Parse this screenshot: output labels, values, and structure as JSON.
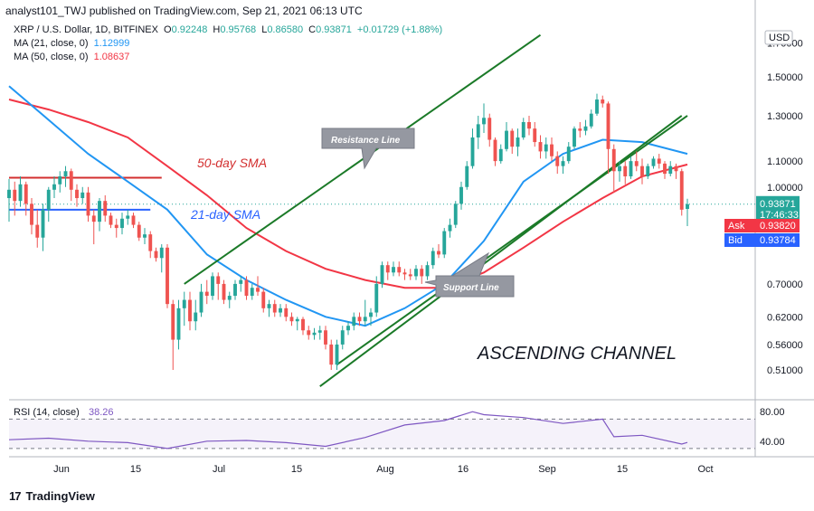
{
  "header": {
    "publisher_text": "analyst101_TWJ published on TradingView.com, Sep 21, 2021 06:13 UTC"
  },
  "footer": {
    "brand": "TradingView"
  },
  "legend": {
    "symbol_line": {
      "pair": "XRP / U.S. Dollar, 1D, BITFINEX",
      "o_label": "O",
      "o_value": "0.92248",
      "h_label": "H",
      "h_value": "0.95768",
      "l_label": "L",
      "l_value": "0.86580",
      "c_label": "C",
      "c_value": "0.93871",
      "change": "+0.01729 (+1.88%)"
    },
    "ma21": {
      "label": "MA (21, close, 0)",
      "value": "1.12999"
    },
    "ma50": {
      "label": "MA (50, close, 0)",
      "value": "1.08637"
    }
  },
  "annotations": {
    "resistance": "Resistance Line",
    "support": "Support Line",
    "sma50": "50-day SMA",
    "sma21": "21-day SMA",
    "channel": "ASCENDING CHANNEL"
  },
  "price_axis": {
    "currency": "USD",
    "ticks": [
      "1.70000",
      "1.50000",
      "1.30000",
      "1.10000",
      "1.00000",
      "0.70000",
      "0.62000",
      "0.56000",
      "0.51000"
    ],
    "last_price": "0.93871",
    "countdown": "17:46:33",
    "ask_label": "Ask",
    "ask_value": "0.93820",
    "bid_label": "Bid",
    "bid_value": "0.93784"
  },
  "rsi": {
    "label": "RSI (14, close)",
    "value": "38.26",
    "ticks": [
      "80.00",
      "40.00"
    ]
  },
  "time_axis": {
    "ticks": [
      "Jun",
      "15",
      "Jul",
      "15",
      "Aug",
      "16",
      "Sep",
      "15",
      "Oct"
    ]
  },
  "colors": {
    "up": "#26a69a",
    "down": "#ef5350",
    "ma21": "#2196f3",
    "ma50": "#f23645",
    "channel": "#1b7a28",
    "rsi": "#7e57c2",
    "resistance_hline": "#d32f2f",
    "support_hline": "#2962ff"
  },
  "chart_data": {
    "type": "candlestick",
    "title": "XRP / U.S. Dollar, 1D, BITFINEX",
    "y_scale": "log",
    "ylim": [
      0.46,
      1.85
    ],
    "x_start": "2021-05-24",
    "x_end": "2021-10-03",
    "candles": [
      [
        "2021-05-24",
        0.96,
        1.03,
        0.88,
        0.99
      ],
      [
        "2021-05-25",
        0.99,
        1.02,
        0.9,
        0.95
      ],
      [
        "2021-05-26",
        0.95,
        1.04,
        0.93,
        1.01
      ],
      [
        "2021-05-27",
        1.01,
        1.02,
        0.9,
        0.94
      ],
      [
        "2021-05-28",
        0.94,
        0.96,
        0.84,
        0.87
      ],
      [
        "2021-05-29",
        0.87,
        0.92,
        0.8,
        0.83
      ],
      [
        "2021-05-30",
        0.83,
        0.94,
        0.79,
        0.92
      ],
      [
        "2021-05-31",
        0.92,
        1.0,
        0.88,
        0.99
      ],
      [
        "2021-06-01",
        0.99,
        1.04,
        0.96,
        1.01
      ],
      [
        "2021-06-02",
        1.01,
        1.06,
        0.98,
        1.04
      ],
      [
        "2021-06-03",
        1.04,
        1.08,
        1.0,
        1.06
      ],
      [
        "2021-06-04",
        1.06,
        1.07,
        0.95,
        0.99
      ],
      [
        "2021-06-05",
        0.99,
        1.01,
        0.93,
        0.96
      ],
      [
        "2021-06-06",
        0.96,
        1.0,
        0.94,
        0.98
      ],
      [
        "2021-06-07",
        0.98,
        1.0,
        0.88,
        0.9
      ],
      [
        "2021-06-08",
        0.9,
        0.92,
        0.81,
        0.88
      ],
      [
        "2021-06-09",
        0.88,
        0.96,
        0.85,
        0.95
      ],
      [
        "2021-06-10",
        0.95,
        0.97,
        0.88,
        0.9
      ],
      [
        "2021-06-11",
        0.9,
        0.91,
        0.86,
        0.87
      ],
      [
        "2021-06-12",
        0.87,
        0.89,
        0.83,
        0.86
      ],
      [
        "2021-06-13",
        0.86,
        0.91,
        0.84,
        0.89
      ],
      [
        "2021-06-14",
        0.89,
        0.92,
        0.87,
        0.9
      ],
      [
        "2021-06-15",
        0.9,
        0.91,
        0.86,
        0.87
      ],
      [
        "2021-06-16",
        0.87,
        0.88,
        0.82,
        0.83
      ],
      [
        "2021-06-17",
        0.83,
        0.86,
        0.81,
        0.84
      ],
      [
        "2021-06-18",
        0.84,
        0.85,
        0.77,
        0.79
      ],
      [
        "2021-06-19",
        0.79,
        0.8,
        0.76,
        0.77
      ],
      [
        "2021-06-20",
        0.77,
        0.81,
        0.73,
        0.8
      ],
      [
        "2021-06-21",
        0.8,
        0.81,
        0.64,
        0.65
      ],
      [
        "2021-06-22",
        0.65,
        0.66,
        0.51,
        0.57
      ],
      [
        "2021-06-23",
        0.57,
        0.66,
        0.55,
        0.64
      ],
      [
        "2021-06-24",
        0.64,
        0.68,
        0.6,
        0.66
      ],
      [
        "2021-06-25",
        0.66,
        0.68,
        0.59,
        0.61
      ],
      [
        "2021-06-26",
        0.61,
        0.66,
        0.59,
        0.63
      ],
      [
        "2021-06-27",
        0.63,
        0.7,
        0.62,
        0.68
      ],
      [
        "2021-06-28",
        0.68,
        0.71,
        0.65,
        0.67
      ],
      [
        "2021-06-29",
        0.67,
        0.73,
        0.66,
        0.72
      ],
      [
        "2021-06-30",
        0.72,
        0.73,
        0.66,
        0.7
      ],
      [
        "2021-07-01",
        0.7,
        0.71,
        0.65,
        0.66
      ],
      [
        "2021-07-02",
        0.66,
        0.68,
        0.64,
        0.67
      ],
      [
        "2021-07-03",
        0.67,
        0.71,
        0.66,
        0.7
      ],
      [
        "2021-07-04",
        0.7,
        0.72,
        0.68,
        0.71
      ],
      [
        "2021-07-05",
        0.71,
        0.72,
        0.66,
        0.67
      ],
      [
        "2021-07-06",
        0.67,
        0.7,
        0.66,
        0.69
      ],
      [
        "2021-07-07",
        0.69,
        0.72,
        0.67,
        0.68
      ],
      [
        "2021-07-08",
        0.68,
        0.69,
        0.63,
        0.64
      ],
      [
        "2021-07-09",
        0.64,
        0.66,
        0.62,
        0.65
      ],
      [
        "2021-07-10",
        0.65,
        0.66,
        0.62,
        0.63
      ],
      [
        "2021-07-11",
        0.63,
        0.65,
        0.62,
        0.64
      ],
      [
        "2021-07-12",
        0.64,
        0.65,
        0.61,
        0.62
      ],
      [
        "2021-07-13",
        0.62,
        0.63,
        0.6,
        0.61
      ],
      [
        "2021-07-14",
        0.61,
        0.62,
        0.59,
        0.615
      ],
      [
        "2021-07-15",
        0.615,
        0.62,
        0.58,
        0.59
      ],
      [
        "2021-07-16",
        0.59,
        0.6,
        0.57,
        0.58
      ],
      [
        "2021-07-17",
        0.58,
        0.595,
        0.57,
        0.585
      ],
      [
        "2021-07-18",
        0.585,
        0.6,
        0.57,
        0.59
      ],
      [
        "2021-07-19",
        0.59,
        0.6,
        0.55,
        0.56
      ],
      [
        "2021-07-20",
        0.56,
        0.57,
        0.51,
        0.52
      ],
      [
        "2021-07-21",
        0.52,
        0.57,
        0.51,
        0.56
      ],
      [
        "2021-07-22",
        0.56,
        0.6,
        0.55,
        0.59
      ],
      [
        "2021-07-23",
        0.59,
        0.61,
        0.58,
        0.6
      ],
      [
        "2021-07-24",
        0.6,
        0.63,
        0.59,
        0.62
      ],
      [
        "2021-07-25",
        0.62,
        0.63,
        0.6,
        0.61
      ],
      [
        "2021-07-26",
        0.61,
        0.66,
        0.6,
        0.62
      ],
      [
        "2021-07-27",
        0.62,
        0.64,
        0.6,
        0.63
      ],
      [
        "2021-07-28",
        0.63,
        0.72,
        0.62,
        0.7
      ],
      [
        "2021-07-29",
        0.7,
        0.76,
        0.69,
        0.75
      ],
      [
        "2021-07-30",
        0.75,
        0.76,
        0.71,
        0.73
      ],
      [
        "2021-07-31",
        0.73,
        0.76,
        0.72,
        0.745
      ],
      [
        "2021-08-01",
        0.745,
        0.76,
        0.72,
        0.73
      ],
      [
        "2021-08-02",
        0.73,
        0.74,
        0.71,
        0.725
      ],
      [
        "2021-08-03",
        0.725,
        0.74,
        0.71,
        0.72
      ],
      [
        "2021-08-04",
        0.72,
        0.75,
        0.71,
        0.74
      ],
      [
        "2021-08-05",
        0.74,
        0.75,
        0.7,
        0.72
      ],
      [
        "2021-08-06",
        0.72,
        0.76,
        0.71,
        0.75
      ],
      [
        "2021-08-07",
        0.75,
        0.8,
        0.74,
        0.79
      ],
      [
        "2021-08-08",
        0.79,
        0.81,
        0.77,
        0.78
      ],
      [
        "2021-08-09",
        0.78,
        0.86,
        0.77,
        0.85
      ],
      [
        "2021-08-10",
        0.85,
        0.89,
        0.83,
        0.87
      ],
      [
        "2021-08-11",
        0.87,
        0.95,
        0.86,
        0.94
      ],
      [
        "2021-08-12",
        0.94,
        1.02,
        0.92,
        1.0
      ],
      [
        "2021-08-13",
        1.0,
        1.1,
        0.99,
        1.08
      ],
      [
        "2021-08-14",
        1.08,
        1.24,
        1.07,
        1.2
      ],
      [
        "2021-08-15",
        1.2,
        1.3,
        1.15,
        1.26
      ],
      [
        "2021-08-16",
        1.26,
        1.36,
        1.22,
        1.29
      ],
      [
        "2021-08-17",
        1.29,
        1.31,
        1.16,
        1.19
      ],
      [
        "2021-08-18",
        1.19,
        1.2,
        1.08,
        1.1
      ],
      [
        "2021-08-19",
        1.1,
        1.17,
        1.09,
        1.15
      ],
      [
        "2021-08-20",
        1.15,
        1.27,
        1.14,
        1.23
      ],
      [
        "2021-08-21",
        1.23,
        1.24,
        1.13,
        1.16
      ],
      [
        "2021-08-22",
        1.16,
        1.24,
        1.12,
        1.2
      ],
      [
        "2021-08-23",
        1.2,
        1.29,
        1.19,
        1.27
      ],
      [
        "2021-08-24",
        1.27,
        1.3,
        1.21,
        1.24
      ],
      [
        "2021-08-25",
        1.24,
        1.27,
        1.16,
        1.18
      ],
      [
        "2021-08-26",
        1.18,
        1.21,
        1.11,
        1.14
      ],
      [
        "2021-08-27",
        1.14,
        1.2,
        1.11,
        1.17
      ],
      [
        "2021-08-28",
        1.17,
        1.2,
        1.1,
        1.12
      ],
      [
        "2021-08-29",
        1.12,
        1.14,
        1.05,
        1.08
      ],
      [
        "2021-08-30",
        1.08,
        1.12,
        1.05,
        1.1
      ],
      [
        "2021-08-31",
        1.1,
        1.18,
        1.09,
        1.16
      ],
      [
        "2021-09-01",
        1.16,
        1.25,
        1.15,
        1.24
      ],
      [
        "2021-09-02",
        1.24,
        1.27,
        1.2,
        1.23
      ],
      [
        "2021-09-03",
        1.23,
        1.28,
        1.21,
        1.25
      ],
      [
        "2021-09-04",
        1.25,
        1.33,
        1.24,
        1.31
      ],
      [
        "2021-09-05",
        1.31,
        1.41,
        1.3,
        1.38
      ],
      [
        "2021-09-06",
        1.38,
        1.4,
        1.34,
        1.36
      ],
      [
        "2021-09-07",
        1.36,
        1.37,
        1.05,
        1.15
      ],
      [
        "2021-09-08",
        1.15,
        1.17,
        0.98,
        1.06
      ],
      [
        "2021-09-09",
        1.06,
        1.1,
        1.02,
        1.08
      ],
      [
        "2021-09-10",
        1.08,
        1.1,
        1.01,
        1.04
      ],
      [
        "2021-09-11",
        1.04,
        1.12,
        1.03,
        1.1
      ],
      [
        "2021-09-12",
        1.1,
        1.14,
        1.06,
        1.08
      ],
      [
        "2021-09-13",
        1.08,
        1.11,
        1.01,
        1.04
      ],
      [
        "2021-09-14",
        1.04,
        1.09,
        1.03,
        1.08
      ],
      [
        "2021-09-15",
        1.08,
        1.12,
        1.07,
        1.11
      ],
      [
        "2021-09-16",
        1.11,
        1.13,
        1.07,
        1.09
      ],
      [
        "2021-09-17",
        1.09,
        1.1,
        1.03,
        1.05
      ],
      [
        "2021-09-18",
        1.05,
        1.1,
        1.04,
        1.08
      ],
      [
        "2021-09-19",
        1.08,
        1.09,
        1.03,
        1.06
      ],
      [
        "2021-09-20",
        1.06,
        1.07,
        0.9,
        0.92
      ],
      [
        "2021-09-21",
        0.92248,
        0.95768,
        0.8658,
        0.93871
      ]
    ],
    "ma21": [
      [
        "2021-05-24",
        1.45
      ],
      [
        "2021-05-31",
        1.28
      ],
      [
        "2021-06-07",
        1.13
      ],
      [
        "2021-06-14",
        1.02
      ],
      [
        "2021-06-21",
        0.92
      ],
      [
        "2021-06-28",
        0.78
      ],
      [
        "2021-07-05",
        0.71
      ],
      [
        "2021-07-12",
        0.66
      ],
      [
        "2021-07-19",
        0.62
      ],
      [
        "2021-07-26",
        0.6
      ],
      [
        "2021-08-02",
        0.64
      ],
      [
        "2021-08-09",
        0.7
      ],
      [
        "2021-08-16",
        0.82
      ],
      [
        "2021-08-23",
        1.02
      ],
      [
        "2021-08-30",
        1.13
      ],
      [
        "2021-09-06",
        1.19
      ],
      [
        "2021-09-13",
        1.18
      ],
      [
        "2021-09-21",
        1.12999
      ]
    ],
    "ma50": [
      [
        "2021-05-24",
        1.38
      ],
      [
        "2021-05-31",
        1.33
      ],
      [
        "2021-06-07",
        1.27
      ],
      [
        "2021-06-14",
        1.2
      ],
      [
        "2021-06-21",
        1.08
      ],
      [
        "2021-06-28",
        0.97
      ],
      [
        "2021-07-05",
        0.86
      ],
      [
        "2021-07-12",
        0.79
      ],
      [
        "2021-07-19",
        0.74
      ],
      [
        "2021-07-26",
        0.71
      ],
      [
        "2021-08-02",
        0.69
      ],
      [
        "2021-08-09",
        0.69
      ],
      [
        "2021-08-16",
        0.73
      ],
      [
        "2021-08-23",
        0.8
      ],
      [
        "2021-08-30",
        0.88
      ],
      [
        "2021-09-06",
        0.96
      ],
      [
        "2021-09-13",
        1.04
      ],
      [
        "2021-09-21",
        1.08637
      ]
    ],
    "channel_lines": {
      "upper": [
        [
          "2021-06-24",
          0.7
        ],
        [
          "2021-08-26",
          1.75
        ]
      ],
      "lower": [
        [
          "2021-07-18",
          0.48
        ],
        [
          "2021-09-20",
          1.3
        ]
      ],
      "lower_mid_extension": [
        [
          "2021-07-21",
          0.52
        ],
        [
          "2021-09-21",
          1.3
        ]
      ]
    },
    "horizontal_lines": {
      "red": {
        "price": 1.035,
        "from": "2021-05-24",
        "to": "2021-06-20"
      },
      "blue": {
        "price": 0.92,
        "from": "2021-05-24",
        "to": "2021-06-18"
      }
    },
    "rsi": {
      "ylim": [
        25,
        95
      ],
      "levels": [
        70,
        30
      ],
      "values": [
        [
          "2021-05-24",
          42
        ],
        [
          "2021-05-31",
          44
        ],
        [
          "2021-06-07",
          40
        ],
        [
          "2021-06-14",
          38
        ],
        [
          "2021-06-21",
          30
        ],
        [
          "2021-06-28",
          40
        ],
        [
          "2021-07-05",
          41
        ],
        [
          "2021-07-12",
          38
        ],
        [
          "2021-07-19",
          33
        ],
        [
          "2021-07-26",
          45
        ],
        [
          "2021-08-02",
          62
        ],
        [
          "2021-08-09",
          68
        ],
        [
          "2021-08-14",
          80
        ],
        [
          "2021-08-16",
          76
        ],
        [
          "2021-08-23",
          72
        ],
        [
          "2021-08-30",
          64
        ],
        [
          "2021-09-06",
          70
        ],
        [
          "2021-09-08",
          46
        ],
        [
          "2021-09-13",
          48
        ],
        [
          "2021-09-20",
          36
        ],
        [
          "2021-09-21",
          38.26
        ]
      ]
    }
  }
}
